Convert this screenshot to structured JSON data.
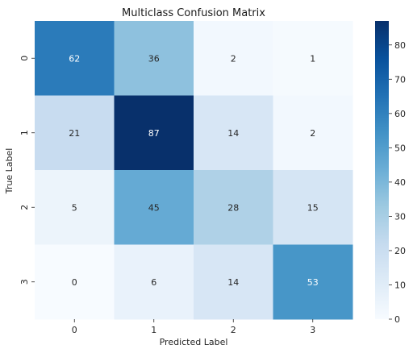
{
  "chart_data": {
    "type": "heatmap",
    "title": "Multiclass Confusion Matrix",
    "xlabel": "Predicted Label",
    "ylabel": "True Label",
    "x_categories": [
      "0",
      "1",
      "2",
      "3"
    ],
    "y_categories": [
      "0",
      "1",
      "2",
      "3"
    ],
    "values": [
      [
        62,
        36,
        2,
        1
      ],
      [
        21,
        87,
        14,
        2
      ],
      [
        5,
        45,
        28,
        15
      ],
      [
        0,
        6,
        14,
        53
      ]
    ],
    "colorbar": {
      "min": 0,
      "max": 87,
      "ticks": [
        0,
        10,
        20,
        30,
        40,
        50,
        60,
        70,
        80
      ]
    },
    "colormap": "Blues",
    "colormap_stops": [
      "#f7fbff",
      "#deebf7",
      "#c6dbef",
      "#9ecae1",
      "#6baed6",
      "#4292c6",
      "#2171b5",
      "#08519c",
      "#08306b"
    ]
  }
}
